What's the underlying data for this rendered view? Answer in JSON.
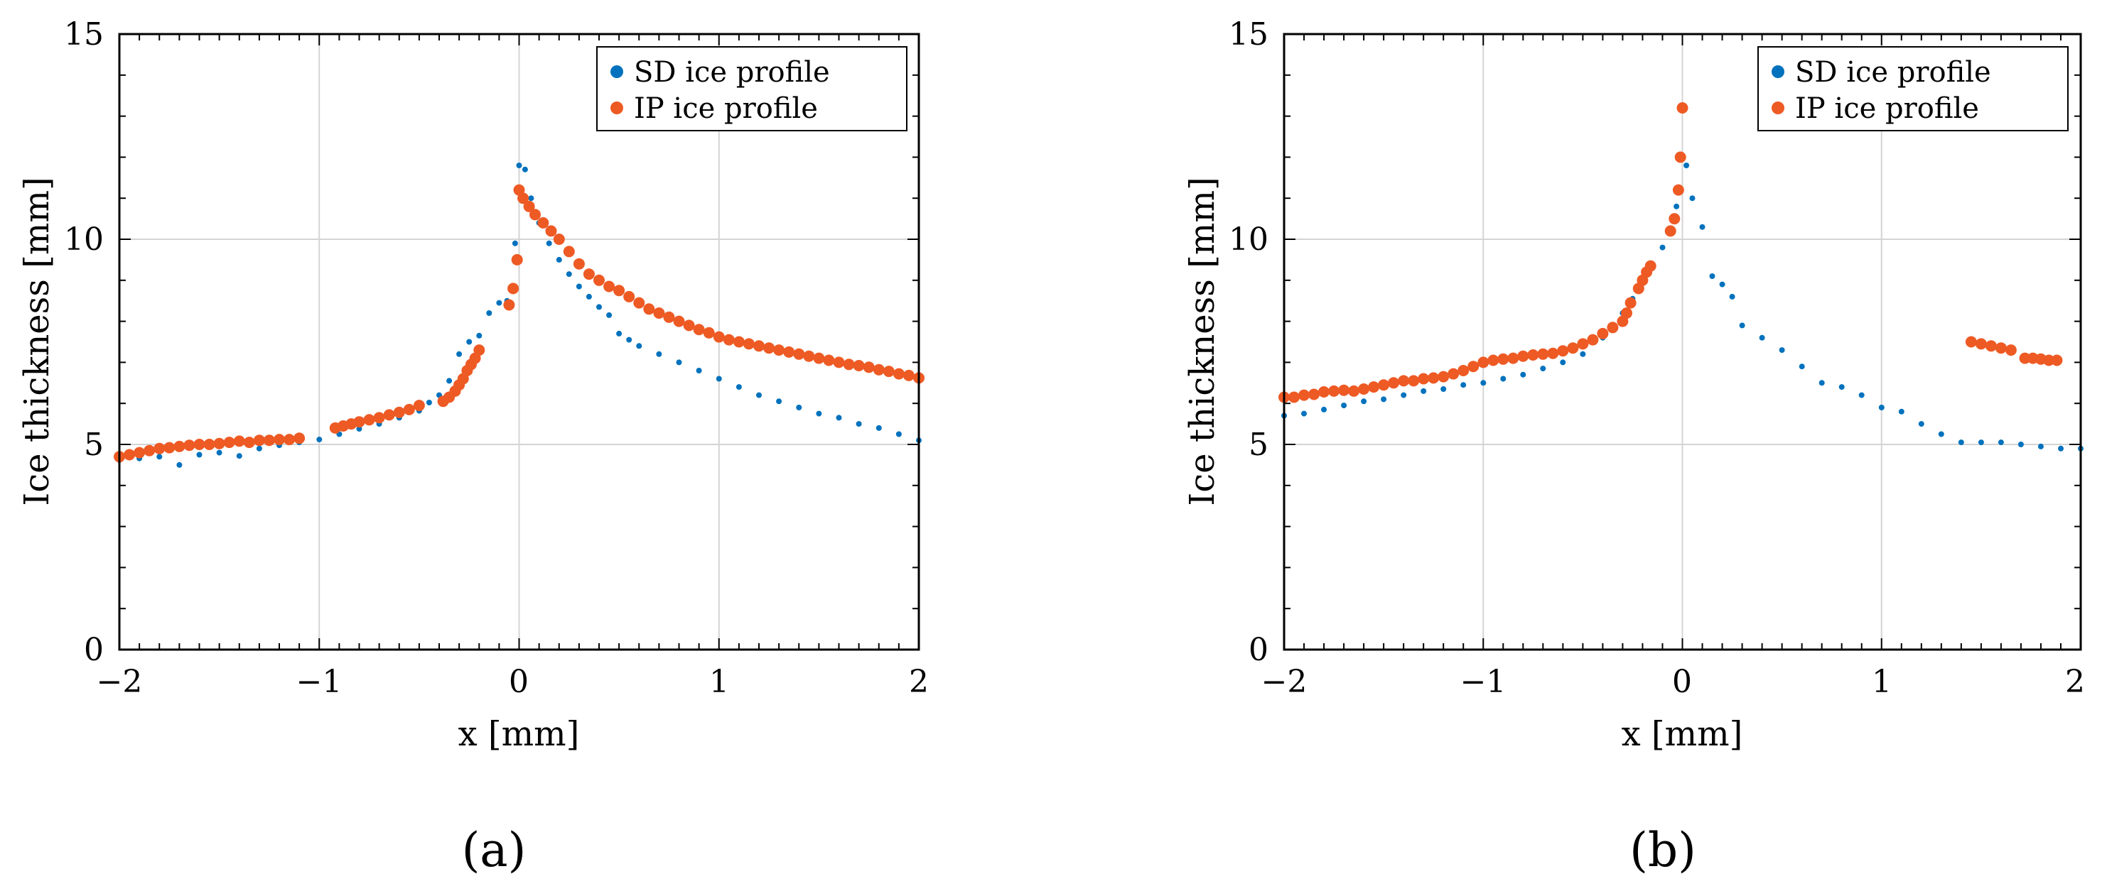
{
  "chart_data": [
    {
      "type": "scatter",
      "caption": "(a)",
      "xlabel": "x [mm]",
      "ylabel": "Ice thickness [mm]",
      "xlim": [
        -2,
        2
      ],
      "ylim": [
        0,
        15
      ],
      "xticks": [
        "−2",
        "−1",
        "0",
        "1",
        "2"
      ],
      "yticks": [
        "0",
        "5",
        "10",
        "15"
      ],
      "grid": true,
      "legend_position": "top-right",
      "series": [
        {
          "name": "SD ice profile",
          "color": "#0072BD",
          "points": [
            [
              -2.0,
              4.62
            ],
            [
              -1.9,
              4.66
            ],
            [
              -1.8,
              4.7
            ],
            [
              -1.7,
              4.5
            ],
            [
              -1.6,
              4.75
            ],
            [
              -1.5,
              4.8
            ],
            [
              -1.4,
              4.72
            ],
            [
              -1.3,
              4.9
            ],
            [
              -1.2,
              4.98
            ],
            [
              -1.1,
              5.05
            ],
            [
              -1.0,
              5.12
            ],
            [
              -0.9,
              5.25
            ],
            [
              -0.8,
              5.38
            ],
            [
              -0.7,
              5.5
            ],
            [
              -0.6,
              5.65
            ],
            [
              -0.5,
              5.82
            ],
            [
              -0.45,
              6.02
            ],
            [
              -0.4,
              6.2
            ],
            [
              -0.35,
              6.55
            ],
            [
              -0.3,
              7.2
            ],
            [
              -0.25,
              7.5
            ],
            [
              -0.2,
              7.65
            ],
            [
              -0.15,
              8.2
            ],
            [
              -0.1,
              8.45
            ],
            [
              -0.06,
              8.5
            ],
            [
              -0.02,
              9.9
            ],
            [
              0.0,
              11.8
            ],
            [
              0.03,
              11.7
            ],
            [
              0.06,
              11.0
            ],
            [
              0.1,
              10.4
            ],
            [
              0.15,
              9.9
            ],
            [
              0.2,
              9.5
            ],
            [
              0.25,
              9.15
            ],
            [
              0.3,
              8.85
            ],
            [
              0.35,
              8.6
            ],
            [
              0.4,
              8.35
            ],
            [
              0.45,
              8.15
            ],
            [
              0.5,
              7.7
            ],
            [
              0.55,
              7.55
            ],
            [
              0.6,
              7.4
            ],
            [
              0.7,
              7.2
            ],
            [
              0.8,
              7.0
            ],
            [
              0.9,
              6.8
            ],
            [
              1.0,
              6.6
            ],
            [
              1.1,
              6.4
            ],
            [
              1.2,
              6.2
            ],
            [
              1.3,
              6.05
            ],
            [
              1.4,
              5.9
            ],
            [
              1.5,
              5.75
            ],
            [
              1.6,
              5.65
            ],
            [
              1.7,
              5.5
            ],
            [
              1.8,
              5.4
            ],
            [
              1.9,
              5.25
            ],
            [
              2.0,
              5.1
            ]
          ]
        },
        {
          "name": "IP ice profile",
          "color": "#EE5A24",
          "points": [
            [
              -2.0,
              4.7
            ],
            [
              -1.95,
              4.75
            ],
            [
              -1.9,
              4.8
            ],
            [
              -1.85,
              4.85
            ],
            [
              -1.8,
              4.9
            ],
            [
              -1.75,
              4.92
            ],
            [
              -1.7,
              4.95
            ],
            [
              -1.65,
              4.98
            ],
            [
              -1.6,
              5.0
            ],
            [
              -1.55,
              5.0
            ],
            [
              -1.5,
              5.02
            ],
            [
              -1.45,
              5.05
            ],
            [
              -1.4,
              5.08
            ],
            [
              -1.35,
              5.05
            ],
            [
              -1.3,
              5.1
            ],
            [
              -1.25,
              5.1
            ],
            [
              -1.2,
              5.12
            ],
            [
              -1.15,
              5.12
            ],
            [
              -1.1,
              5.15
            ],
            [
              -0.92,
              5.4
            ],
            [
              -0.88,
              5.45
            ],
            [
              -0.84,
              5.5
            ],
            [
              -0.8,
              5.55
            ],
            [
              -0.75,
              5.6
            ],
            [
              -0.7,
              5.65
            ],
            [
              -0.65,
              5.72
            ],
            [
              -0.6,
              5.78
            ],
            [
              -0.55,
              5.85
            ],
            [
              -0.5,
              5.95
            ],
            [
              -0.38,
              6.05
            ],
            [
              -0.35,
              6.15
            ],
            [
              -0.32,
              6.3
            ],
            [
              -0.3,
              6.45
            ],
            [
              -0.28,
              6.6
            ],
            [
              -0.26,
              6.8
            ],
            [
              -0.24,
              6.95
            ],
            [
              -0.22,
              7.1
            ],
            [
              -0.2,
              7.3
            ],
            [
              -0.05,
              8.4
            ],
            [
              -0.03,
              8.8
            ],
            [
              -0.01,
              9.5
            ],
            [
              0.0,
              11.2
            ],
            [
              0.02,
              11.0
            ],
            [
              0.05,
              10.8
            ],
            [
              0.08,
              10.6
            ],
            [
              0.12,
              10.4
            ],
            [
              0.16,
              10.2
            ],
            [
              0.2,
              10.0
            ],
            [
              0.25,
              9.7
            ],
            [
              0.3,
              9.4
            ],
            [
              0.35,
              9.15
            ],
            [
              0.4,
              9.0
            ],
            [
              0.45,
              8.85
            ],
            [
              0.5,
              8.75
            ],
            [
              0.55,
              8.6
            ],
            [
              0.6,
              8.45
            ],
            [
              0.65,
              8.3
            ],
            [
              0.7,
              8.2
            ],
            [
              0.75,
              8.1
            ],
            [
              0.8,
              8.0
            ],
            [
              0.85,
              7.9
            ],
            [
              0.9,
              7.8
            ],
            [
              0.95,
              7.72
            ],
            [
              1.0,
              7.62
            ],
            [
              1.05,
              7.55
            ],
            [
              1.1,
              7.5
            ],
            [
              1.15,
              7.45
            ],
            [
              1.2,
              7.4
            ],
            [
              1.25,
              7.35
            ],
            [
              1.3,
              7.3
            ],
            [
              1.35,
              7.25
            ],
            [
              1.4,
              7.2
            ],
            [
              1.45,
              7.15
            ],
            [
              1.5,
              7.1
            ],
            [
              1.55,
              7.05
            ],
            [
              1.6,
              7.0
            ],
            [
              1.65,
              6.95
            ],
            [
              1.7,
              6.92
            ],
            [
              1.75,
              6.88
            ],
            [
              1.8,
              6.82
            ],
            [
              1.85,
              6.78
            ],
            [
              1.9,
              6.72
            ],
            [
              1.95,
              6.68
            ],
            [
              2.0,
              6.62
            ]
          ]
        }
      ]
    },
    {
      "type": "scatter",
      "caption": "(b)",
      "xlabel": "x [mm]",
      "ylabel": "Ice thickness [mm]",
      "xlim": [
        -2,
        2
      ],
      "ylim": [
        0,
        15
      ],
      "xticks": [
        "−2",
        "−1",
        "0",
        "1",
        "2"
      ],
      "yticks": [
        "0",
        "5",
        "10",
        "15"
      ],
      "grid": true,
      "legend_position": "top-right",
      "series": [
        {
          "name": "SD ice profile",
          "color": "#0072BD",
          "points": [
            [
              -2.0,
              5.7
            ],
            [
              -1.9,
              5.75
            ],
            [
              -1.8,
              5.85
            ],
            [
              -1.7,
              5.95
            ],
            [
              -1.6,
              6.05
            ],
            [
              -1.5,
              6.1
            ],
            [
              -1.4,
              6.2
            ],
            [
              -1.3,
              6.3
            ],
            [
              -1.2,
              6.35
            ],
            [
              -1.1,
              6.45
            ],
            [
              -1.0,
              6.5
            ],
            [
              -0.9,
              6.6
            ],
            [
              -0.8,
              6.7
            ],
            [
              -0.7,
              6.85
            ],
            [
              -0.6,
              7.0
            ],
            [
              -0.5,
              7.2
            ],
            [
              -0.45,
              7.5
            ],
            [
              -0.4,
              7.6
            ],
            [
              -0.35,
              7.8
            ],
            [
              -0.3,
              8.2
            ],
            [
              -0.25,
              8.55
            ],
            [
              -0.2,
              8.95
            ],
            [
              -0.15,
              9.3
            ],
            [
              -0.1,
              9.8
            ],
            [
              -0.06,
              10.2
            ],
            [
              -0.03,
              10.8
            ],
            [
              0.0,
              12.0
            ],
            [
              0.02,
              11.8
            ],
            [
              0.05,
              11.0
            ],
            [
              0.1,
              10.3
            ],
            [
              0.15,
              9.1
            ],
            [
              0.2,
              8.9
            ],
            [
              0.25,
              8.6
            ],
            [
              0.3,
              7.9
            ],
            [
              0.4,
              7.6
            ],
            [
              0.5,
              7.3
            ],
            [
              0.6,
              6.9
            ],
            [
              0.7,
              6.5
            ],
            [
              0.8,
              6.4
            ],
            [
              0.9,
              6.2
            ],
            [
              1.0,
              5.9
            ],
            [
              1.1,
              5.8
            ],
            [
              1.2,
              5.5
            ],
            [
              1.3,
              5.25
            ],
            [
              1.4,
              5.05
            ],
            [
              1.5,
              5.05
            ],
            [
              1.6,
              5.05
            ],
            [
              1.7,
              5.0
            ],
            [
              1.8,
              4.95
            ],
            [
              1.9,
              4.9
            ],
            [
              2.0,
              4.9
            ]
          ]
        },
        {
          "name": "IP ice profile",
          "color": "#EE5A24",
          "points": [
            [
              -2.0,
              6.15
            ],
            [
              -1.95,
              6.15
            ],
            [
              -1.9,
              6.2
            ],
            [
              -1.85,
              6.22
            ],
            [
              -1.8,
              6.28
            ],
            [
              -1.75,
              6.3
            ],
            [
              -1.7,
              6.32
            ],
            [
              -1.65,
              6.3
            ],
            [
              -1.6,
              6.35
            ],
            [
              -1.55,
              6.4
            ],
            [
              -1.5,
              6.45
            ],
            [
              -1.45,
              6.5
            ],
            [
              -1.4,
              6.55
            ],
            [
              -1.35,
              6.55
            ],
            [
              -1.3,
              6.6
            ],
            [
              -1.25,
              6.62
            ],
            [
              -1.2,
              6.65
            ],
            [
              -1.15,
              6.72
            ],
            [
              -1.1,
              6.8
            ],
            [
              -1.05,
              6.9
            ],
            [
              -1.0,
              7.0
            ],
            [
              -0.95,
              7.05
            ],
            [
              -0.9,
              7.08
            ],
            [
              -0.85,
              7.1
            ],
            [
              -0.8,
              7.15
            ],
            [
              -0.75,
              7.18
            ],
            [
              -0.7,
              7.2
            ],
            [
              -0.65,
              7.22
            ],
            [
              -0.6,
              7.28
            ],
            [
              -0.55,
              7.35
            ],
            [
              -0.5,
              7.45
            ],
            [
              -0.45,
              7.55
            ],
            [
              -0.4,
              7.7
            ],
            [
              -0.35,
              7.85
            ],
            [
              -0.3,
              8.0
            ],
            [
              -0.28,
              8.2
            ],
            [
              -0.26,
              8.45
            ],
            [
              -0.22,
              8.8
            ],
            [
              -0.2,
              9.0
            ],
            [
              -0.18,
              9.2
            ],
            [
              -0.16,
              9.35
            ],
            [
              -0.06,
              10.2
            ],
            [
              -0.04,
              10.5
            ],
            [
              -0.02,
              11.2
            ],
            [
              -0.01,
              12.0
            ],
            [
              0.0,
              13.2
            ],
            [
              1.45,
              7.5
            ],
            [
              1.5,
              7.45
            ],
            [
              1.55,
              7.4
            ],
            [
              1.6,
              7.35
            ],
            [
              1.65,
              7.3
            ],
            [
              1.72,
              7.1
            ],
            [
              1.76,
              7.1
            ],
            [
              1.8,
              7.08
            ],
            [
              1.84,
              7.05
            ],
            [
              1.88,
              7.05
            ]
          ]
        }
      ]
    }
  ]
}
